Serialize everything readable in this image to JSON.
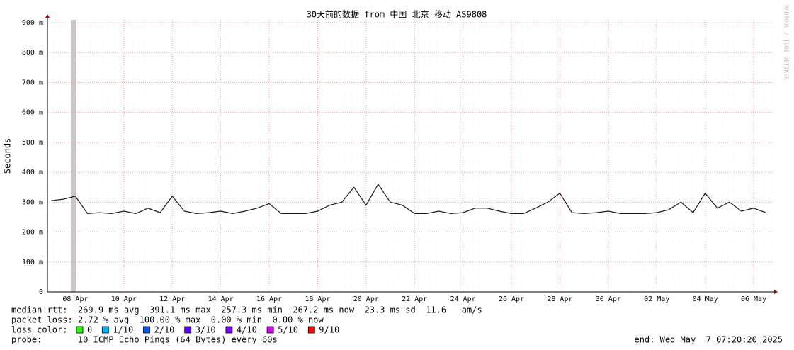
{
  "chart_data": {
    "type": "line",
    "title": "30天前的数据 from 中国 北京 移动 AS9808",
    "ylabel": "Seconds",
    "watermark": "RRDTOOL / TOBI OETIKER",
    "color": "#1a1a1a",
    "grid": true,
    "xlim": [
      "2025-04-06T20:20",
      "2025-05-06T20:20"
    ],
    "xticks": [
      {
        "value": "2025-04-08T00:00",
        "label": "08 Apr"
      },
      {
        "value": "2025-04-10T00:00",
        "label": "10 Apr"
      },
      {
        "value": "2025-04-12T00:00",
        "label": "12 Apr"
      },
      {
        "value": "2025-04-14T00:00",
        "label": "14 Apr"
      },
      {
        "value": "2025-04-16T00:00",
        "label": "16 Apr"
      },
      {
        "value": "2025-04-18T00:00",
        "label": "18 Apr"
      },
      {
        "value": "2025-04-20T00:00",
        "label": "20 Apr"
      },
      {
        "value": "2025-04-22T00:00",
        "label": "22 Apr"
      },
      {
        "value": "2025-04-24T00:00",
        "label": "24 Apr"
      },
      {
        "value": "2025-04-26T00:00",
        "label": "26 Apr"
      },
      {
        "value": "2025-04-28T00:00",
        "label": "28 Apr"
      },
      {
        "value": "2025-04-30T00:00",
        "label": "30 Apr"
      },
      {
        "value": "2025-05-02T00:00",
        "label": "02 May"
      },
      {
        "value": "2025-05-04T00:00",
        "label": "04 May"
      },
      {
        "value": "2025-05-06T00:00",
        "label": "06 May"
      }
    ],
    "ylim": [
      0,
      0.9
    ],
    "yticks": [
      0,
      {
        "value": 0.1,
        "label": "100 m"
      },
      {
        "value": 0.2,
        "label": "200 m"
      },
      {
        "value": 0.3,
        "label": "300 m"
      },
      {
        "value": 0.4,
        "label": "400 m"
      },
      {
        "value": 0.5,
        "label": "500 m"
      },
      {
        "value": 0.6,
        "label": "600 m"
      },
      {
        "value": 0.7,
        "label": "700 m"
      },
      {
        "value": 0.8,
        "label": "800 m"
      },
      {
        "value": 0.9,
        "label": "900 m"
      }
    ],
    "x": [
      "2025-04-07T00:00",
      "2025-04-07T12:00",
      "2025-04-08T00:00",
      "2025-04-08T12:00",
      "2025-04-09T00:00",
      "2025-04-09T12:00",
      "2025-04-10T00:00",
      "2025-04-10T12:00",
      "2025-04-11T00:00",
      "2025-04-11T12:00",
      "2025-04-12T00:00",
      "2025-04-12T12:00",
      "2025-04-13T00:00",
      "2025-04-13T12:00",
      "2025-04-14T00:00",
      "2025-04-14T12:00",
      "2025-04-15T00:00",
      "2025-04-15T12:00",
      "2025-04-16T00:00",
      "2025-04-16T12:00",
      "2025-04-17T00:00",
      "2025-04-17T12:00",
      "2025-04-18T00:00",
      "2025-04-18T12:00",
      "2025-04-19T00:00",
      "2025-04-19T12:00",
      "2025-04-20T00:00",
      "2025-04-20T12:00",
      "2025-04-21T00:00",
      "2025-04-21T12:00",
      "2025-04-22T00:00",
      "2025-04-22T12:00",
      "2025-04-23T00:00",
      "2025-04-23T12:00",
      "2025-04-24T00:00",
      "2025-04-24T12:00",
      "2025-04-25T00:00",
      "2025-04-25T12:00",
      "2025-04-26T00:00",
      "2025-04-26T12:00",
      "2025-04-27T00:00",
      "2025-04-27T12:00",
      "2025-04-28T00:00",
      "2025-04-28T12:00",
      "2025-04-29T00:00",
      "2025-04-29T12:00",
      "2025-04-30T00:00",
      "2025-04-30T12:00",
      "2025-05-01T00:00",
      "2025-05-01T12:00",
      "2025-05-02T00:00",
      "2025-05-02T12:00",
      "2025-05-03T00:00",
      "2025-05-03T12:00",
      "2025-05-04T00:00",
      "2025-05-04T12:00",
      "2025-05-05T00:00",
      "2025-05-05T12:00",
      "2025-05-06T00:00",
      "2025-05-06T12:00"
    ],
    "values": [
      0.305,
      0.31,
      0.32,
      0.262,
      0.265,
      0.262,
      0.27,
      0.262,
      0.28,
      0.265,
      0.32,
      0.27,
      0.262,
      0.265,
      0.27,
      0.262,
      0.27,
      0.28,
      0.295,
      0.262,
      0.262,
      0.262,
      0.27,
      0.29,
      0.3,
      0.35,
      0.29,
      0.36,
      0.3,
      0.29,
      0.262,
      0.262,
      0.27,
      0.262,
      0.265,
      0.28,
      0.28,
      0.27,
      0.262,
      0.262,
      0.28,
      0.3,
      0.33,
      0.265,
      0.262,
      0.265,
      0.27,
      0.262,
      0.262,
      0.262,
      0.265,
      0.275,
      0.3,
      0.265,
      0.33,
      0.28,
      0.3,
      0.27,
      0.28,
      0.265
    ]
  },
  "stats": {
    "median": "median rtt:  269.9 ms avg  391.1 ms max  257.3 ms min  267.2 ms now  23.3 ms sd  11.6   am/s",
    "loss": "packet loss: 2.72 % avg  100.00 % max  0.00 % min  0.00 % now",
    "loss_color_label": "loss color:",
    "loss_colors": [
      {
        "label": "0",
        "color": "#26ff00"
      },
      {
        "label": "1/10",
        "color": "#00b8ff"
      },
      {
        "label": "2/10",
        "color": "#0059ff"
      },
      {
        "label": "3/10",
        "color": "#5e00ff"
      },
      {
        "label": "4/10",
        "color": "#7e00ff"
      },
      {
        "label": "5/10",
        "color": "#dd00ff"
      },
      {
        "label": "9/10",
        "color": "#ff0000"
      }
    ],
    "probe": "probe:       10 ICMP Echo Pings (64 Bytes) every 60s",
    "end": "end: Wed May  7 07:20:20 2025"
  }
}
